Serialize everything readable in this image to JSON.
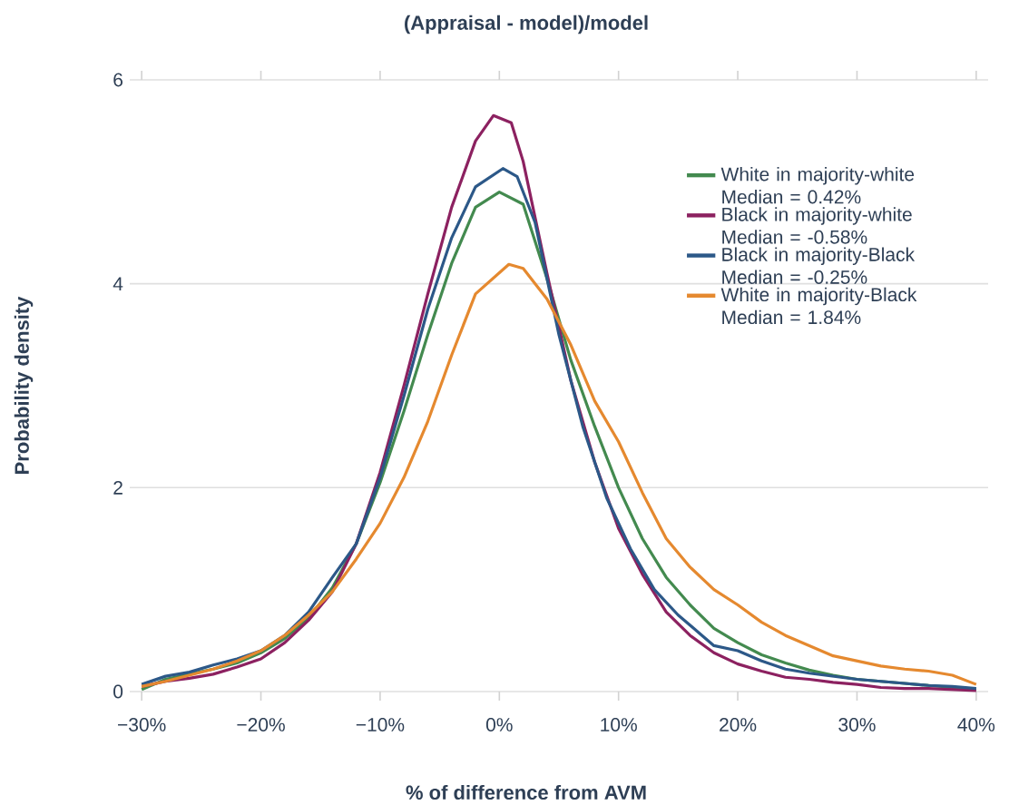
{
  "chart_data": {
    "type": "line",
    "title": "(Appraisal - model)/model",
    "xlabel": "% of difference from AVM",
    "ylabel": "Probability density",
    "xlim": [
      -31,
      41
    ],
    "ylim": [
      0,
      6
    ],
    "xticks": [
      {
        "value": -30,
        "label": "−30%"
      },
      {
        "value": -20,
        "label": "−20%"
      },
      {
        "value": -10,
        "label": "−10%"
      },
      {
        "value": 0,
        "label": "0%"
      },
      {
        "value": 10,
        "label": "10%"
      },
      {
        "value": 20,
        "label": "20%"
      },
      {
        "value": 30,
        "label": "30%"
      },
      {
        "value": 40,
        "label": "40%"
      }
    ],
    "yticks": [
      0,
      2,
      4,
      6
    ],
    "grid": "y",
    "legend": "top right",
    "series": [
      {
        "name": "White in majority-white Median = 0.42%",
        "color": "#438a4f",
        "x": [
          -30,
          -28,
          -26,
          -24,
          -22,
          -20,
          -18,
          -16,
          -14,
          -12,
          -10,
          -8,
          -6,
          -4,
          -2,
          0,
          2,
          4,
          6,
          8,
          10,
          12,
          14,
          16,
          18,
          20,
          22,
          24,
          26,
          28,
          30,
          32,
          34,
          36,
          38,
          40
        ],
        "values": [
          0.02,
          0.12,
          0.17,
          0.22,
          0.28,
          0.38,
          0.52,
          0.72,
          1.02,
          1.45,
          2.05,
          2.75,
          3.5,
          4.2,
          4.75,
          4.9,
          4.78,
          4.05,
          3.25,
          2.6,
          2.0,
          1.5,
          1.12,
          0.85,
          0.62,
          0.48,
          0.36,
          0.28,
          0.21,
          0.16,
          0.12,
          0.1,
          0.08,
          0.06,
          0.04,
          0.02
        ]
      },
      {
        "name": "Black in majority-white Median = -0.58%",
        "color": "#8c2160",
        "x": [
          -30,
          -28,
          -26,
          -24,
          -22,
          -20,
          -18,
          -16,
          -14,
          -12,
          -10,
          -8,
          -6,
          -4,
          -2,
          -0.5,
          1,
          2,
          4,
          6,
          8,
          10,
          12,
          14,
          16,
          18,
          20,
          22,
          24,
          26,
          28,
          30,
          32,
          34,
          36,
          38,
          40
        ],
        "values": [
          0.05,
          0.1,
          0.13,
          0.17,
          0.24,
          0.32,
          0.48,
          0.7,
          0.98,
          1.45,
          2.15,
          3.0,
          3.9,
          4.75,
          5.4,
          5.65,
          5.58,
          5.2,
          4.1,
          3.05,
          2.25,
          1.6,
          1.15,
          0.78,
          0.55,
          0.38,
          0.27,
          0.2,
          0.14,
          0.12,
          0.09,
          0.07,
          0.04,
          0.03,
          0.03,
          0.02,
          0.01
        ]
      },
      {
        "name": "Black in majority-Black Median = -0.25%",
        "color": "#2c5888",
        "x": [
          -30,
          -28,
          -26,
          -24,
          -22,
          -20,
          -18,
          -16,
          -14,
          -12,
          -10,
          -8,
          -6,
          -4,
          -2,
          0.3,
          1.5,
          3,
          5,
          7,
          9,
          11,
          13,
          15,
          17,
          18,
          20,
          22,
          24,
          26,
          28,
          30,
          32,
          34,
          36,
          38,
          40
        ],
        "values": [
          0.07,
          0.15,
          0.19,
          0.26,
          0.32,
          0.4,
          0.55,
          0.78,
          1.12,
          1.45,
          2.1,
          2.9,
          3.75,
          4.45,
          4.95,
          5.13,
          5.05,
          4.6,
          3.5,
          2.6,
          1.9,
          1.4,
          1.0,
          0.75,
          0.55,
          0.45,
          0.4,
          0.3,
          0.22,
          0.18,
          0.15,
          0.12,
          0.1,
          0.08,
          0.06,
          0.05,
          0.03
        ]
      },
      {
        "name": "White in majority-Black Median = 1.84%",
        "color": "#e5892f",
        "x": [
          -30,
          -28,
          -26,
          -24,
          -22,
          -20,
          -18,
          -16,
          -14,
          -12,
          -10,
          -8,
          -6,
          -4,
          -2,
          0.8,
          2,
          4,
          6,
          8,
          10,
          12,
          14,
          16,
          18,
          20,
          22,
          24,
          26,
          28,
          30,
          32,
          34,
          36,
          38,
          40
        ],
        "values": [
          0.05,
          0.1,
          0.16,
          0.22,
          0.3,
          0.4,
          0.55,
          0.75,
          0.98,
          1.3,
          1.65,
          2.1,
          2.65,
          3.3,
          3.9,
          4.19,
          4.15,
          3.85,
          3.4,
          2.85,
          2.45,
          1.95,
          1.5,
          1.22,
          1.0,
          0.85,
          0.68,
          0.55,
          0.45,
          0.35,
          0.3,
          0.25,
          0.22,
          0.2,
          0.16,
          0.07
        ]
      }
    ]
  }
}
